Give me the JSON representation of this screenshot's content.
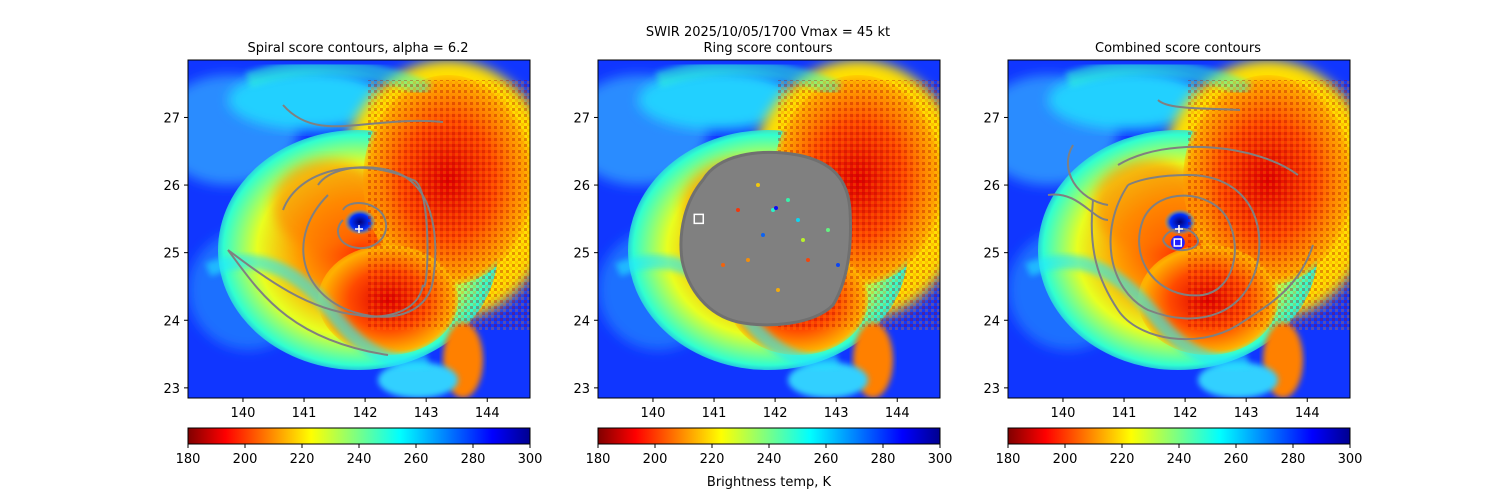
{
  "suptitle": "SWIR  2025/10/05/1700    Vmax = 45 kt",
  "colors": {
    "contour": "#808080",
    "cyclone_marker": "#ffffff",
    "combined_center_marker": "#2020ff"
  },
  "chart_data": [
    {
      "type": "heatmap",
      "id": "spiral",
      "title": "Spiral score contours, alpha =  6.2",
      "x_ticks": [
        140,
        141,
        142,
        143,
        144
      ],
      "y_ticks": [
        23,
        24,
        25,
        26,
        27
      ],
      "xlim": [
        139.1,
        144.7
      ],
      "ylim": [
        22.85,
        27.85
      ],
      "marker": {
        "label": "plus",
        "x": 141.9,
        "y": 25.35
      },
      "colorbar": {
        "ticks": [
          180,
          200,
          220,
          240,
          260,
          280,
          300
        ],
        "range": [
          180,
          300
        ],
        "label": ""
      }
    },
    {
      "type": "heatmap",
      "id": "ring",
      "title": "Ring score contours",
      "x_ticks": [
        140,
        141,
        142,
        143,
        144
      ],
      "y_ticks": [
        23,
        24,
        25,
        26,
        27
      ],
      "xlim": [
        139.1,
        144.7
      ],
      "ylim": [
        22.85,
        27.85
      ],
      "marker": {
        "label": "square",
        "x": 140.75,
        "y": 25.5
      },
      "colorbar": {
        "ticks": [
          180,
          200,
          220,
          240,
          260,
          280,
          300
        ],
        "range": [
          180,
          300
        ],
        "label": "Brightness temp, K"
      }
    },
    {
      "type": "heatmap",
      "id": "combined",
      "title": "Combined score contours",
      "x_ticks": [
        140,
        141,
        142,
        143,
        144
      ],
      "y_ticks": [
        23,
        24,
        25,
        26,
        27
      ],
      "xlim": [
        139.1,
        144.7
      ],
      "ylim": [
        22.85,
        27.85
      ],
      "marker": {
        "label": "plus",
        "x": 141.9,
        "y": 25.35
      },
      "center": {
        "label": "square",
        "x": 141.88,
        "y": 25.15
      },
      "colorbar": {
        "ticks": [
          180,
          200,
          220,
          240,
          260,
          280,
          300
        ],
        "range": [
          180,
          300
        ],
        "label": ""
      }
    }
  ]
}
